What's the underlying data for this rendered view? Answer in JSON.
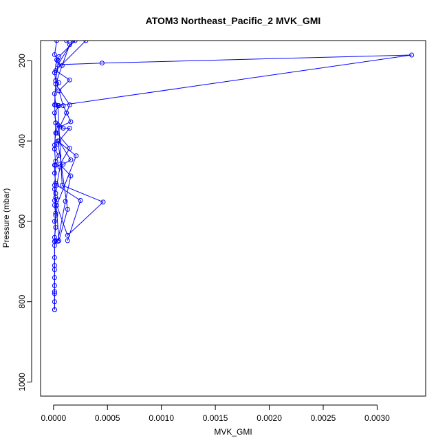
{
  "chart_data": {
    "type": "line",
    "title": "ATOM3 Northeast_Pacific_2 MVK_GMI",
    "xlabel": "MVK_GMI",
    "ylabel": "Pressure (mbar)",
    "xlim": [
      -0.00012,
      0.00345
    ],
    "ylim": [
      1035,
      150
    ],
    "y_reversed": true,
    "x_ticks": [
      0,
      0.0005,
      0.001,
      0.0015,
      0.002,
      0.0025,
      0.003
    ],
    "x_tick_labels": [
      "0.0000",
      "0.0005",
      "0.0010",
      "0.0015",
      "0.0020",
      "0.0025",
      "0.0030"
    ],
    "y_ticks": [
      200,
      400,
      600,
      800,
      1000
    ],
    "y_tick_labels": [
      "200",
      "400",
      "600",
      "800",
      "1000"
    ],
    "series_color": "#0000ff",
    "grid": false,
    "series": [
      {
        "values": [
          [
            3e-05,
            150
          ],
          [
            1e-05,
            185
          ],
          [
            4e-05,
            200
          ],
          [
            3e-05,
            198
          ],
          [
            1e-05,
            230
          ],
          [
            2e-05,
            250
          ],
          [
            5e-05,
            255
          ],
          [
            1e-05,
            282
          ],
          [
            2e-05,
            310
          ],
          [
            5e-05,
            312
          ],
          [
            1e-05,
            330
          ],
          [
            2e-05,
            355
          ],
          [
            4e-05,
            360
          ],
          [
            2e-05,
            380
          ],
          [
            1e-05,
            410
          ],
          [
            3e-05,
            408
          ],
          [
            1e-05,
            420
          ],
          [
            5e-05,
            437
          ],
          [
            2e-05,
            450
          ],
          [
            1e-05,
            460
          ],
          [
            1e-05,
            480
          ],
          [
            2e-05,
            505
          ],
          [
            1e-05,
            510
          ],
          [
            2e-05,
            530
          ],
          [
            1e-05,
            548
          ],
          [
            3e-05,
            546
          ],
          [
            1e-05,
            560
          ],
          [
            2e-05,
            585
          ],
          [
            1e-05,
            600
          ],
          [
            2e-05,
            615
          ],
          [
            1e-05,
            640
          ],
          [
            2e-05,
            648
          ],
          [
            1e-05,
            660
          ],
          [
            1e-05,
            690
          ],
          [
            1e-05,
            710
          ],
          [
            1e-05,
            740
          ],
          [
            1e-05,
            760
          ],
          [
            1e-05,
            780
          ],
          [
            1e-05,
            800
          ],
          [
            1e-05,
            820
          ]
        ]
      },
      {
        "values": [
          [
            0.0002,
            150
          ],
          [
            5e-05,
            190
          ],
          [
            2e-05,
            250
          ],
          [
            1e-05,
            310
          ],
          [
            2e-05,
            355
          ],
          [
            1e-05,
            420
          ],
          [
            2e-05,
            460
          ],
          [
            1e-05,
            520
          ],
          [
            2e-05,
            580
          ],
          [
            1e-05,
            650
          ],
          [
            1e-05,
            720
          ],
          [
            1e-05,
            775
          ],
          [
            1e-05,
            820
          ]
        ]
      },
      {
        "values": [
          [
            0.00012,
            150
          ],
          [
            0.00015,
            160
          ],
          [
            8e-05,
            212
          ],
          [
            2e-05,
            258
          ],
          [
            0.00015,
            310
          ],
          [
            0.00012,
            330
          ],
          [
            3e-05,
            380
          ],
          [
            0.00015,
            418
          ],
          [
            6e-05,
            458
          ],
          [
            0.00016,
            487
          ],
          [
            0.00011,
            550
          ],
          [
            4e-05,
            650
          ]
        ]
      },
      {
        "values": [
          [
            0.0003,
            150
          ],
          [
            2e-05,
            225
          ],
          [
            0.00015,
            248
          ],
          [
            5e-05,
            275
          ],
          [
            9e-05,
            312
          ],
          [
            0.00016,
            352
          ],
          [
            6e-05,
            365
          ],
          [
            9e-05,
            368
          ],
          [
            0.00015,
            368
          ],
          [
            5e-05,
            400
          ],
          [
            0.00016,
            447
          ],
          [
            9e-05,
            458
          ],
          [
            6e-05,
            465
          ],
          [
            3e-05,
            510
          ],
          [
            0.00025,
            548
          ],
          [
            0.00013,
            648
          ]
        ]
      },
      {
        "values": [
          [
            0.00018,
            150
          ],
          [
            4e-05,
            210
          ],
          [
            0.00045,
            206
          ],
          [
            0.00332,
            186
          ],
          [
            4e-05,
            312
          ],
          [
            8e-05,
            510
          ],
          [
            0.00046,
            552
          ],
          [
            0.00013,
            635
          ],
          [
            3e-05,
            560
          ],
          [
            0.00021,
            437
          ],
          [
            4e-05,
            400
          ],
          [
            0.00013,
            570
          ],
          [
            5e-05,
            648
          ],
          [
            2e-05,
            540
          ]
        ]
      }
    ]
  }
}
